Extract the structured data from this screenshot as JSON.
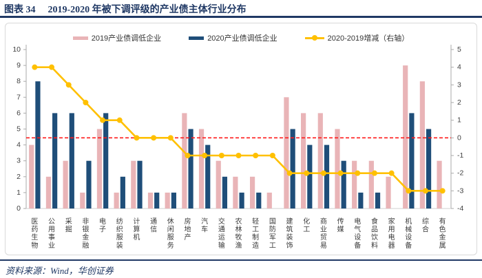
{
  "header": {
    "figure_label": "图表 34",
    "figure_title": "2019-2020 年被下调评级的产业债主体行业分布"
  },
  "footer": {
    "source": "资料来源：Wind，华创证券"
  },
  "colors": {
    "accent_navy": "#1f3864",
    "bar_2019": "#e9b4b7",
    "bar_2020": "#1f4e79",
    "change_line": "#ffc000",
    "ref_line": "#ff1a1a",
    "axis_text": "#404040",
    "frame_border": "#d9d9d9"
  },
  "chart_data": {
    "type": "bar",
    "title": "2019-2020 年被下调评级的产业债主体行业分布",
    "legend_position": "top",
    "grid": false,
    "categories": [
      "医药生物",
      "公用事业",
      "采掘",
      "非银金融",
      "电子",
      "纺织服装",
      "计算机",
      "通信",
      "休闲服务",
      "房地产",
      "汽车",
      "交通运输",
      "农林牧渔",
      "轻工制造",
      "国防军工",
      "建筑装饰",
      "化工",
      "商业贸易",
      "传媒",
      "电气设备",
      "食品饮料",
      "家用电器",
      "机械设备",
      "综合",
      "有色金属"
    ],
    "series": [
      {
        "name": "2019产业债调低企业",
        "type": "bar",
        "axis": "left",
        "color": "#e9b4b7",
        "values": [
          4,
          2,
          3,
          1,
          5,
          1,
          3,
          1,
          1,
          6,
          5,
          3,
          2,
          2,
          1,
          7,
          6,
          6,
          5,
          3,
          3,
          2,
          9,
          8,
          3
        ]
      },
      {
        "name": "2020产业债调低企业",
        "type": "bar",
        "axis": "left",
        "color": "#1f4e79",
        "values": [
          8,
          6,
          6,
          3,
          6,
          2,
          3,
          1,
          1,
          5,
          4,
          2,
          1,
          1,
          0,
          5,
          4,
          4,
          3,
          1,
          1,
          0,
          6,
          5,
          0
        ]
      },
      {
        "name": "2020-2019增减（右轴）",
        "type": "line",
        "axis": "right",
        "color": "#ffc000",
        "values": [
          4,
          4,
          3,
          2,
          1,
          1,
          0,
          0,
          0,
          -1,
          -1,
          -1,
          -1,
          -1,
          -1,
          -2,
          -2,
          -2,
          -2,
          -2,
          -2,
          -2,
          -3,
          -3,
          -3
        ]
      }
    ],
    "left_axis": {
      "min": 0,
      "max": 10,
      "step": 1
    },
    "right_axis": {
      "min": -4,
      "max": 5,
      "step": 1
    },
    "ref_line": {
      "axis": "right",
      "value": 0,
      "color": "#ff1a1a",
      "style": "dashed"
    }
  }
}
